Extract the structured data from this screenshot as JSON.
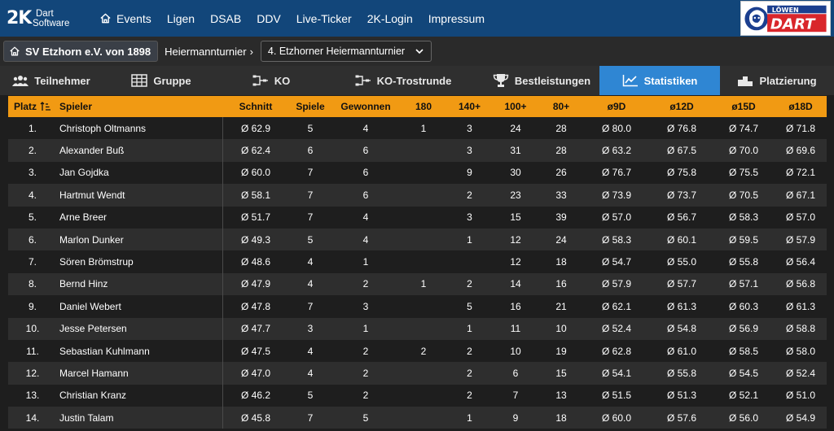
{
  "topnav": {
    "logo_mark": "2K",
    "logo_line1": "Dart",
    "logo_line2": "Software",
    "items": [
      {
        "label": "Events",
        "icon": "home-icon"
      },
      {
        "label": "Ligen"
      },
      {
        "label": "DSAB"
      },
      {
        "label": "DDV"
      },
      {
        "label": "Live-Ticker"
      },
      {
        "label": "2K-Login"
      },
      {
        "label": "Impressum"
      }
    ],
    "brand_top": "LÖWEN",
    "brand_main": "DART"
  },
  "breadcrumb": {
    "club": "SV Etzhorn e.V. von 1898",
    "tournament": "Heiermannturnier",
    "selected_event": "4. Etzhorner Heiermannturnier"
  },
  "tabs": [
    {
      "label": "Teilnehmer",
      "icon": "users-icon"
    },
    {
      "label": "Gruppe",
      "icon": "grid-icon"
    },
    {
      "label": "KO",
      "icon": "bracket-icon"
    },
    {
      "label": "KO-Trostrunde",
      "icon": "bracket-icon"
    },
    {
      "label": "Bestleistungen",
      "icon": "trophy-icon"
    },
    {
      "label": "Statistiken",
      "icon": "chart-line-icon",
      "active": true
    },
    {
      "label": "Platzierung",
      "icon": "podium-icon"
    }
  ],
  "table": {
    "headers": [
      "Platz",
      "Spieler",
      "Schnitt",
      "Spiele",
      "Gewonnen",
      "180",
      "140+",
      "100+",
      "80+",
      "ø9D",
      "ø12D",
      "ø15D",
      "ø18D"
    ],
    "rows": [
      [
        "1.",
        "Christoph Oltmanns",
        "Ø 62.9",
        "5",
        "4",
        "1",
        "3",
        "24",
        "28",
        "Ø 80.0",
        "Ø 76.8",
        "Ø 74.7",
        "Ø 71.8"
      ],
      [
        "2.",
        "Alexander Buß",
        "Ø 62.4",
        "6",
        "6",
        "",
        "3",
        "31",
        "28",
        "Ø 63.2",
        "Ø 67.5",
        "Ø 70.0",
        "Ø 69.6"
      ],
      [
        "3.",
        "Jan Gojdka",
        "Ø 60.0",
        "7",
        "6",
        "",
        "9",
        "30",
        "26",
        "Ø 76.7",
        "Ø 75.8",
        "Ø 75.5",
        "Ø 72.1"
      ],
      [
        "4.",
        "Hartmut Wendt",
        "Ø 58.1",
        "7",
        "6",
        "",
        "2",
        "23",
        "33",
        "Ø 73.9",
        "Ø 73.7",
        "Ø 70.5",
        "Ø 67.1"
      ],
      [
        "5.",
        "Arne Breer",
        "Ø 51.7",
        "7",
        "4",
        "",
        "3",
        "15",
        "39",
        "Ø 57.0",
        "Ø 56.7",
        "Ø 58.3",
        "Ø 57.0"
      ],
      [
        "6.",
        "Marlon Dunker",
        "Ø 49.3",
        "5",
        "4",
        "",
        "1",
        "12",
        "24",
        "Ø 58.3",
        "Ø 60.1",
        "Ø 59.5",
        "Ø 57.9"
      ],
      [
        "7.",
        "Sören Brömstrup",
        "Ø 48.6",
        "4",
        "1",
        "",
        "",
        "12",
        "18",
        "Ø 54.7",
        "Ø 55.0",
        "Ø 55.8",
        "Ø 56.4"
      ],
      [
        "8.",
        "Bernd Hinz",
        "Ø 47.9",
        "4",
        "2",
        "1",
        "2",
        "14",
        "16",
        "Ø 57.9",
        "Ø 57.7",
        "Ø 57.1",
        "Ø 56.8"
      ],
      [
        "9.",
        "Daniel Webert",
        "Ø 47.8",
        "7",
        "3",
        "",
        "5",
        "16",
        "21",
        "Ø 62.1",
        "Ø 61.3",
        "Ø 60.3",
        "Ø 61.3"
      ],
      [
        "10.",
        "Jesse Petersen",
        "Ø 47.7",
        "3",
        "1",
        "",
        "1",
        "11",
        "10",
        "Ø 52.4",
        "Ø 54.8",
        "Ø 56.9",
        "Ø 58.8"
      ],
      [
        "11.",
        "Sebastian Kuhlmann",
        "Ø 47.5",
        "4",
        "2",
        "2",
        "2",
        "10",
        "19",
        "Ø 62.8",
        "Ø 61.0",
        "Ø 58.5",
        "Ø 58.0"
      ],
      [
        "12.",
        "Marcel Hamann",
        "Ø 47.0",
        "4",
        "2",
        "",
        "2",
        "6",
        "15",
        "Ø 54.1",
        "Ø 55.8",
        "Ø 54.5",
        "Ø 52.4"
      ],
      [
        "13.",
        "Christian Kranz",
        "Ø 46.2",
        "5",
        "2",
        "",
        "2",
        "7",
        "13",
        "Ø 51.5",
        "Ø 51.3",
        "Ø 52.1",
        "Ø 51.0"
      ],
      [
        "14.",
        "Justin Talam",
        "Ø 45.8",
        "7",
        "5",
        "",
        "1",
        "9",
        "18",
        "Ø 60.0",
        "Ø 57.6",
        "Ø 56.0",
        "Ø 54.9"
      ]
    ]
  }
}
